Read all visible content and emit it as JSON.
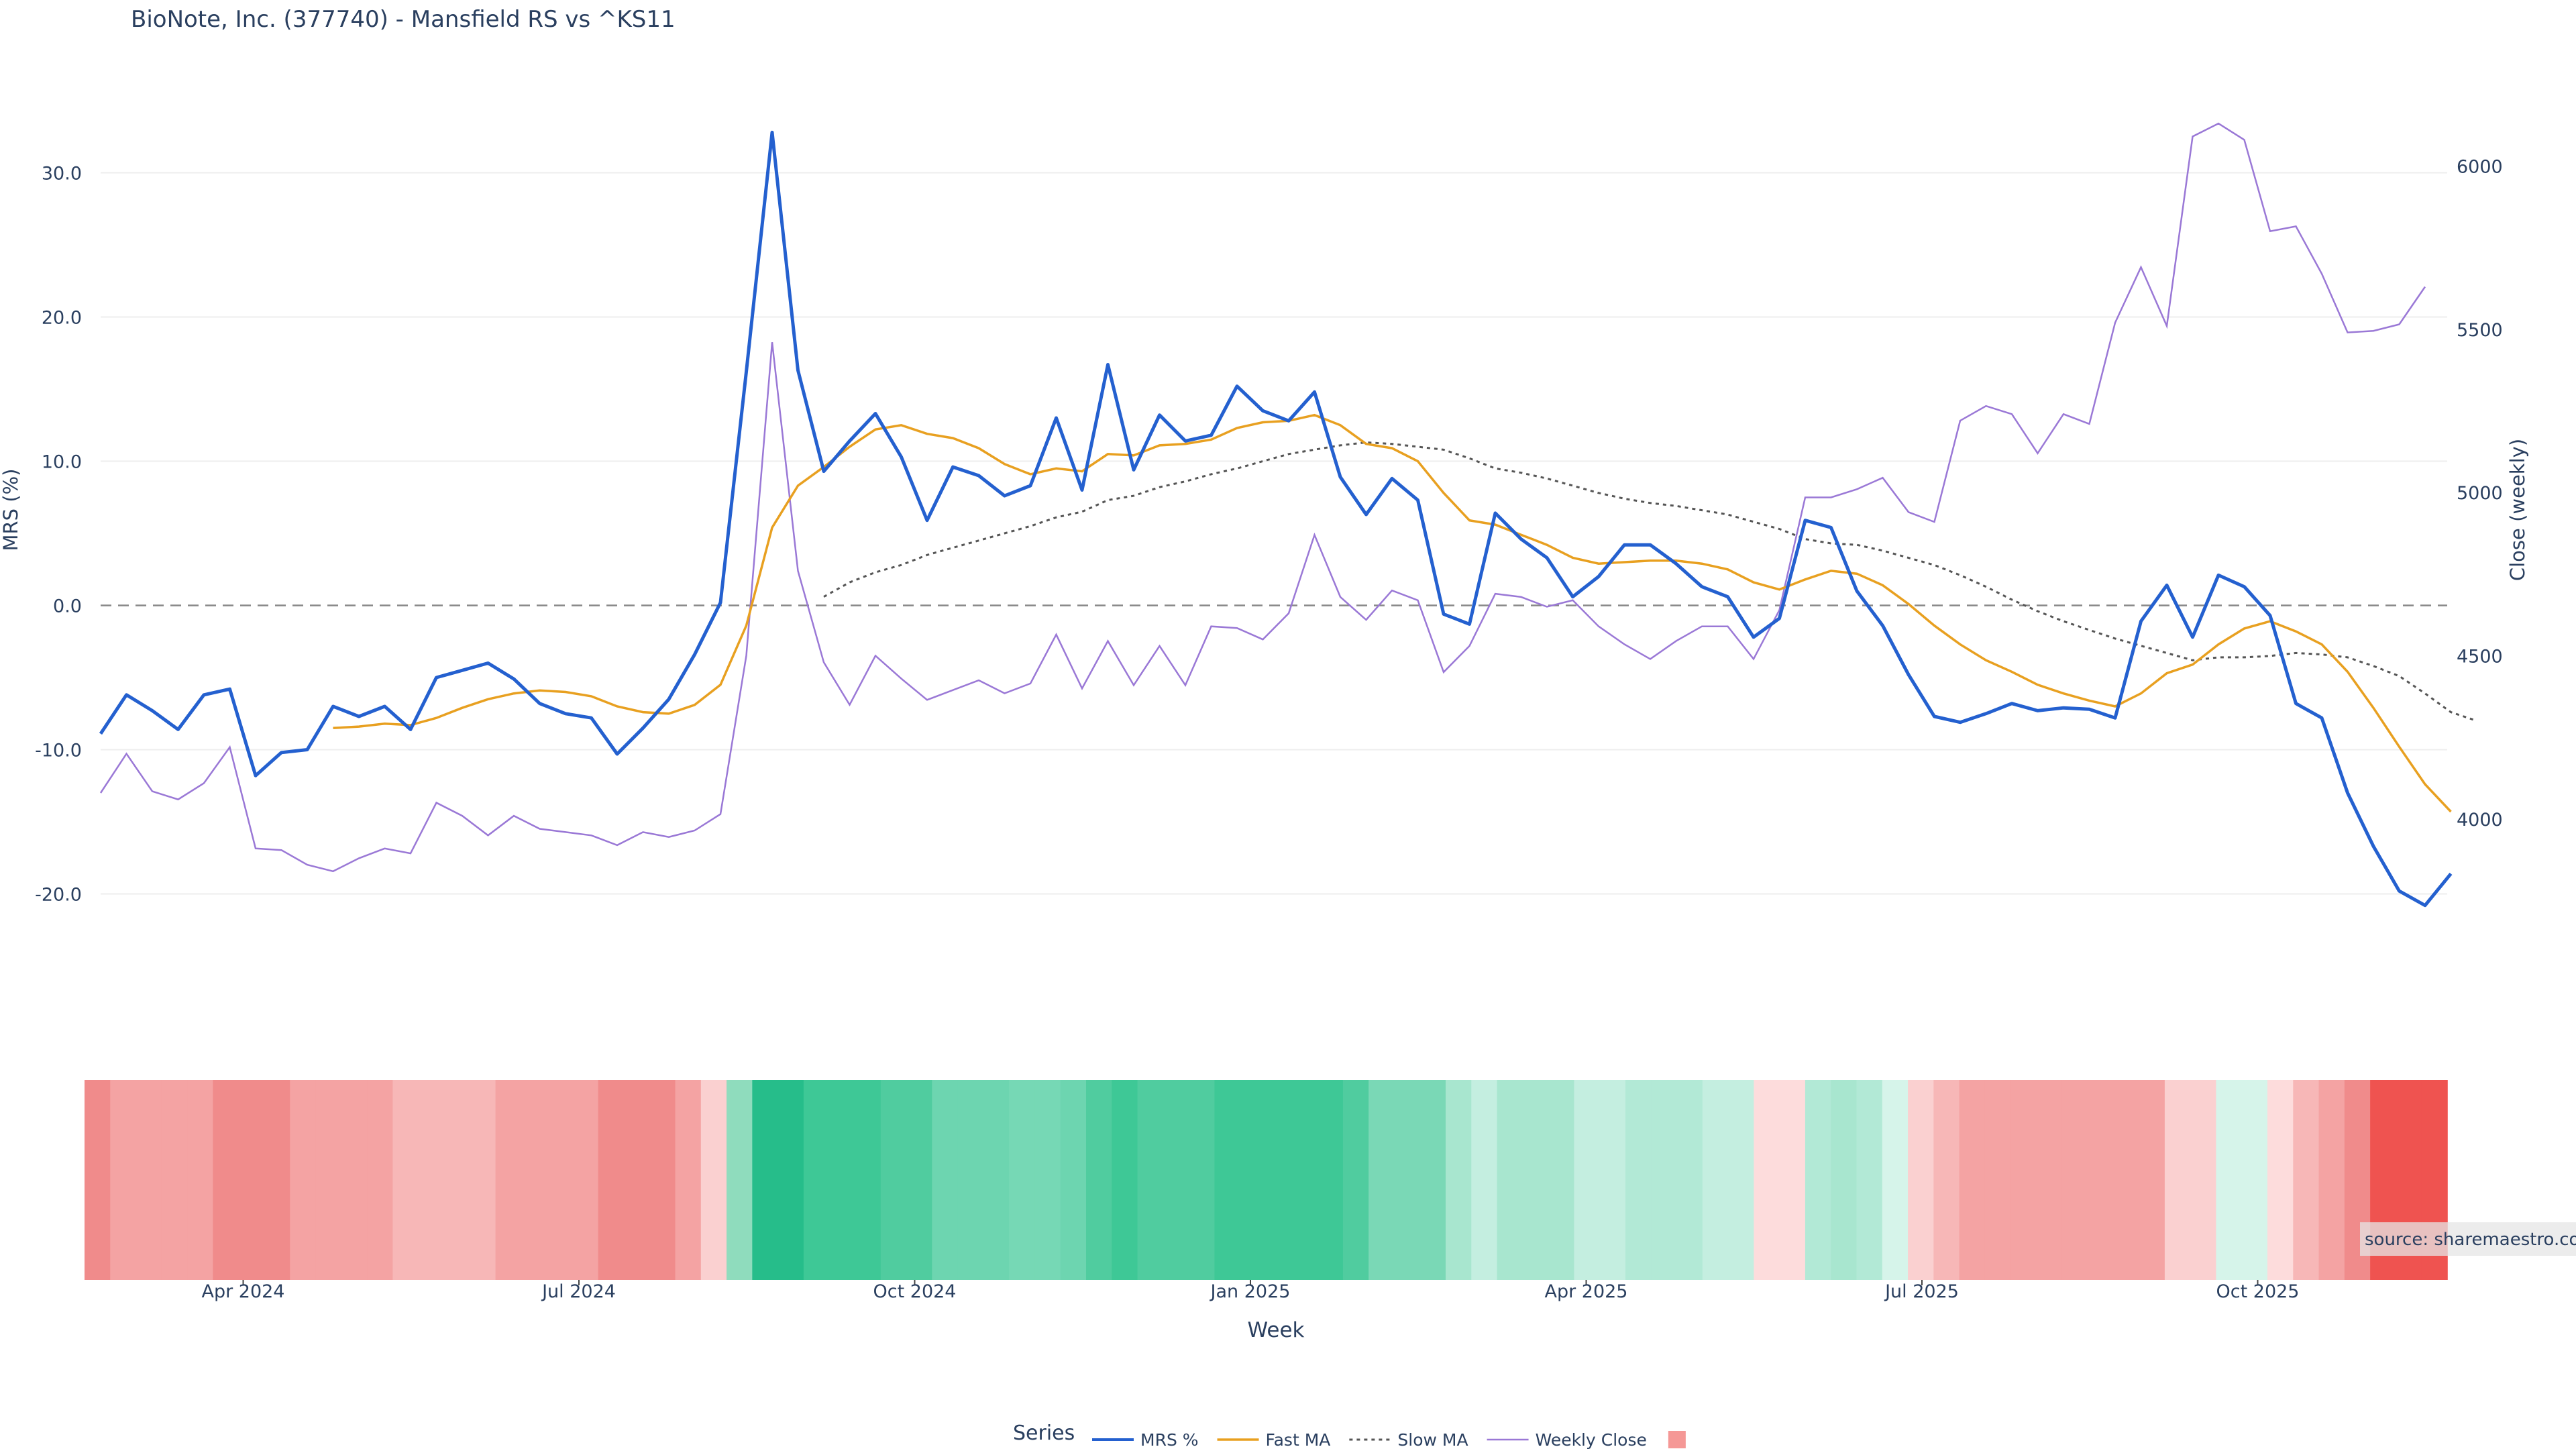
{
  "chart_data": {
    "type": "line",
    "title": "BioNote, Inc. (377740) - Mansfield RS vs ^KS11",
    "xlabel": "Week",
    "ylabel": "MRS (%)",
    "y2label": "Close (weekly)",
    "ylim": [
      -25,
      35
    ],
    "y2lim": [
      3550,
      6200
    ],
    "yticks": [
      -20,
      -10,
      0,
      10,
      20,
      30
    ],
    "y2ticks": [
      4000,
      4500,
      5000,
      5500,
      6000
    ],
    "x_start": "2024-02-26",
    "x_end": "2025-11-17",
    "xticks": [
      {
        "label": "Apr 2024",
        "index": 5
      },
      {
        "label": "Jul 2024",
        "index": 18
      },
      {
        "label": "Oct 2024",
        "index": 31
      },
      {
        "label": "Jan 2025",
        "index": 44
      },
      {
        "label": "Apr 2025",
        "index": 57
      },
      {
        "label": "Jul 2025",
        "index": 70
      },
      {
        "label": "Oct 2025",
        "index": 83
      }
    ],
    "legend_title": "Series",
    "legend_position": "bottom-center",
    "source_note": "source: sharemaestro.com",
    "colors": {
      "mrs": "#2460cf",
      "fast": "#e8a020",
      "slow": "#555555",
      "close": "#9a78d6",
      "zero": "#888888",
      "grid": "#eeeeee",
      "neg": "#ef5350",
      "pos": "#26bd8a"
    },
    "series": [
      {
        "name": "MRS %",
        "key": "mrs",
        "start_index": 0,
        "values": [
          -8.9,
          -6.2,
          -7.3,
          -8.6,
          -6.2,
          -5.8,
          -11.8,
          -10.2,
          -10.0,
          -7.0,
          -7.7,
          -7.0,
          -8.6,
          -5.0,
          -4.5,
          -4.0,
          -5.1,
          -6.8,
          -7.5,
          -7.8,
          -10.3,
          -8.5,
          -6.5,
          -3.4,
          0.2,
          16.2,
          32.8,
          16.3,
          9.3,
          11.4,
          13.3,
          10.3,
          5.9,
          9.6,
          9.0,
          7.6,
          8.3,
          13.0,
          8.0,
          16.7,
          9.4,
          13.2,
          11.4,
          11.8,
          15.2,
          13.5,
          12.8,
          14.8,
          8.9,
          6.3,
          8.8,
          7.3,
          -0.6,
          -1.3,
          6.4,
          4.6,
          3.3,
          0.6,
          2.0,
          4.2,
          4.2,
          2.9,
          1.3,
          0.6,
          -2.2,
          -0.9,
          5.9,
          5.4,
          1.0,
          -1.4,
          -4.8,
          -7.7,
          -8.1,
          -7.5,
          -6.8,
          -7.3,
          -7.1,
          -7.2,
          -7.8,
          -1.1,
          1.4,
          -2.2,
          2.1,
          1.3,
          -0.7,
          -6.8,
          -7.8,
          -13.0,
          -16.7,
          -19.8,
          -20.8,
          -18.6
        ]
      },
      {
        "name": "Fast MA",
        "key": "fast",
        "start_index": 9,
        "values": [
          -8.5,
          -8.4,
          -8.2,
          -8.3,
          -7.8,
          -7.1,
          -6.5,
          -6.1,
          -5.9,
          -6.0,
          -6.3,
          -7.0,
          -7.4,
          -7.5,
          -6.9,
          -5.5,
          -1.4,
          5.4,
          8.3,
          9.6,
          11.0,
          12.2,
          12.5,
          11.9,
          11.6,
          10.9,
          9.8,
          9.1,
          9.5,
          9.3,
          10.5,
          10.4,
          11.1,
          11.2,
          11.5,
          12.3,
          12.7,
          12.8,
          13.2,
          12.5,
          11.2,
          10.9,
          10.0,
          7.8,
          5.9,
          5.6,
          4.9,
          4.2,
          3.3,
          2.9,
          3.0,
          3.1,
          3.1,
          2.9,
          2.5,
          1.6,
          1.1,
          1.8,
          2.4,
          2.2,
          1.4,
          0.1,
          -1.4,
          -2.7,
          -3.8,
          -4.6,
          -5.5,
          -6.1,
          -6.6,
          -7.0,
          -6.1,
          -4.7,
          -4.1,
          -2.7,
          -1.6,
          -1.1,
          -1.8,
          -2.7,
          -4.6,
          -7.1,
          -9.8,
          -12.4,
          -14.3
        ]
      },
      {
        "name": "Slow MA",
        "key": "slow",
        "start_index": 28,
        "values": [
          0.6,
          1.6,
          2.3,
          2.8,
          3.5,
          4.0,
          4.5,
          5.0,
          5.5,
          6.1,
          6.5,
          7.3,
          7.6,
          8.2,
          8.6,
          9.1,
          9.5,
          10.0,
          10.5,
          10.8,
          11.1,
          11.3,
          11.2,
          11.0,
          10.8,
          10.2,
          9.5,
          9.2,
          8.8,
          8.3,
          7.8,
          7.4,
          7.1,
          6.9,
          6.6,
          6.3,
          5.8,
          5.3,
          4.6,
          4.3,
          4.2,
          3.8,
          3.3,
          2.8,
          2.1,
          1.3,
          0.4,
          -0.4,
          -1.1,
          -1.7,
          -2.3,
          -2.8,
          -3.3,
          -3.8,
          -3.6,
          -3.6,
          -3.5,
          -3.3,
          -3.4,
          -3.6,
          -4.2,
          -4.9,
          -6.1,
          -7.4,
          -8.0
        ]
      },
      {
        "name": "Weekly Close",
        "key": "close",
        "start_index": 0,
        "values": [
          4080,
          4200,
          4085,
          4060,
          4110,
          4220,
          3910,
          3905,
          3860,
          3840,
          3880,
          3910,
          3895,
          4050,
          4010,
          3950,
          4010,
          3970,
          3960,
          3950,
          3920,
          3960,
          3945,
          3965,
          4015,
          4500,
          5460,
          4760,
          4480,
          4350,
          4500,
          4430,
          4365,
          4395,
          4425,
          4385,
          4415,
          4565,
          4400,
          4545,
          4410,
          4530,
          4410,
          4590,
          4585,
          4550,
          4630,
          4870,
          4680,
          4610,
          4700,
          4670,
          4450,
          4530,
          4690,
          4680,
          4650,
          4670,
          4590,
          4535,
          4490,
          4545,
          4590,
          4590,
          4490,
          4640,
          4985,
          4985,
          5010,
          5045,
          4940,
          4910,
          5220,
          5265,
          5240,
          5120,
          5240,
          5210,
          5520,
          5690,
          5510,
          6090,
          6130,
          6080,
          5800,
          5815,
          5670,
          5490,
          5495,
          5515,
          5630
        ]
      }
    ],
    "regime_strip": [
      "#f08b8b",
      "#f4a3a3",
      "#f4a3a3",
      "#f4a3a3",
      "#f4a3a3",
      "#f08b8b",
      "#f08b8b",
      "#f08b8b",
      "#f4a3a3",
      "#f4a3a3",
      "#f4a3a3",
      "#f4a3a3",
      "#f7b7b7",
      "#f7b7b7",
      "#f7b7b7",
      "#f7b7b7",
      "#f4a3a3",
      "#f4a3a3",
      "#f4a3a3",
      "#f4a3a3",
      "#f08b8b",
      "#f08b8b",
      "#f08b8b",
      "#f4a3a3",
      "#fad0d0",
      "#8fdcbd",
      "#26bd8a",
      "#26bd8a",
      "#3ec896",
      "#3ec896",
      "#3ec896",
      "#50cc9f",
      "#50cc9f",
      "#6dd5b0",
      "#6dd5b0",
      "#6dd5b0",
      "#76d8b5",
      "#76d8b5",
      "#6dd5b0",
      "#50cc9f",
      "#3ec896",
      "#50cc9f",
      "#50cc9f",
      "#50cc9f",
      "#3ec896",
      "#3ec896",
      "#3ec896",
      "#3ec896",
      "#3ec896",
      "#50cc9f",
      "#7ad8b6",
      "#7ad8b6",
      "#7ad8b6",
      "#a8e6cf",
      "#c4eee0",
      "#a8e6cf",
      "#a8e6cf",
      "#a8e6cf",
      "#c4eee0",
      "#c4eee0",
      "#b2e9d6",
      "#b2e9d6",
      "#b2e9d6",
      "#c4eee0",
      "#c4eee0",
      "#fddcdc",
      "#fddcdc",
      "#b2e9d6",
      "#a8e6cf",
      "#b2e9d6",
      "#d6f4ea",
      "#fad0d0",
      "#f7b7b7",
      "#f4a3a3",
      "#f4a3a3",
      "#f4a3a3",
      "#f4a3a3",
      "#f4a3a3",
      "#f4a3a3",
      "#f4a3a3",
      "#f4a3a3",
      "#fad0d0",
      "#fad0d0",
      "#d6f4ea",
      "#d6f4ea",
      "#fddcdc",
      "#f7b7b7",
      "#f4a3a3",
      "#f08b8b",
      "#ef5350",
      "#ef5350",
      "#ef5350"
    ]
  }
}
